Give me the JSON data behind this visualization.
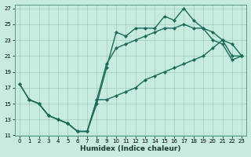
{
  "xlabel": "Humidex (Indice chaleur)",
  "bg_color": "#c8ebe0",
  "grid_color": "#a0ccbb",
  "line_color": "#1a6b5a",
  "xlim": [
    -0.5,
    23.5
  ],
  "ylim": [
    11,
    27.5
  ],
  "xticks": [
    0,
    1,
    2,
    3,
    4,
    5,
    6,
    7,
    8,
    9,
    10,
    11,
    12,
    13,
    14,
    15,
    16,
    17,
    18,
    19,
    20,
    21,
    22,
    23
  ],
  "yticks": [
    11,
    13,
    15,
    17,
    19,
    21,
    23,
    25,
    27
  ],
  "line1_x": [
    0,
    1,
    2,
    3,
    4,
    5,
    6,
    7,
    8,
    9,
    10,
    11,
    12,
    13,
    14,
    15,
    16,
    17,
    18,
    19,
    20,
    21,
    22,
    23
  ],
  "line1_y": [
    17.5,
    15.5,
    15.0,
    13.5,
    13.0,
    12.5,
    11.5,
    11.5,
    15.0,
    19.5,
    24.0,
    23.5,
    24.5,
    24.5,
    24.5,
    26.0,
    25.5,
    27.0,
    25.5,
    24.5,
    23.0,
    22.5,
    20.5,
    21.0
  ],
  "line2_x": [
    1,
    2,
    3,
    4,
    5,
    6,
    7,
    8,
    9,
    10,
    11,
    12,
    13,
    14,
    15,
    16,
    17,
    18,
    19,
    20,
    21,
    22,
    23
  ],
  "line2_y": [
    15.5,
    15.0,
    13.5,
    13.0,
    12.5,
    11.5,
    11.5,
    15.5,
    20.0,
    22.0,
    22.5,
    23.0,
    23.5,
    24.0,
    24.5,
    24.5,
    25.0,
    24.5,
    24.5,
    24.0,
    23.0,
    22.5,
    21.0
  ],
  "line3_x": [
    0,
    1,
    2,
    3,
    4,
    5,
    6,
    7,
    8,
    9,
    10,
    11,
    12,
    13,
    14,
    15,
    16,
    17,
    18,
    19,
    20,
    21,
    22,
    23
  ],
  "line3_y": [
    17.5,
    15.5,
    15.0,
    13.5,
    13.0,
    12.5,
    11.5,
    11.5,
    15.5,
    15.5,
    16.0,
    16.5,
    17.0,
    18.0,
    18.5,
    19.0,
    19.5,
    20.0,
    20.5,
    21.0,
    22.0,
    23.0,
    21.0,
    21.0
  ]
}
